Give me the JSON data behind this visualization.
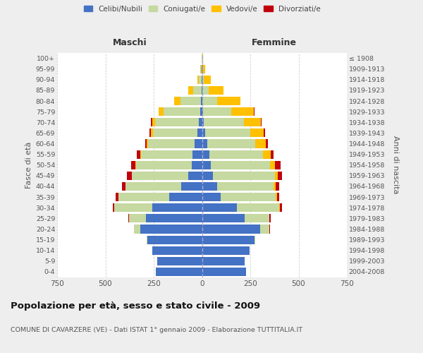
{
  "age_groups": [
    "0-4",
    "5-9",
    "10-14",
    "15-19",
    "20-24",
    "25-29",
    "30-34",
    "35-39",
    "40-44",
    "45-49",
    "50-54",
    "55-59",
    "60-64",
    "65-69",
    "70-74",
    "75-79",
    "80-84",
    "85-89",
    "90-94",
    "95-99",
    "100+"
  ],
  "birth_years": [
    "2004-2008",
    "1999-2003",
    "1994-1998",
    "1989-1993",
    "1984-1988",
    "1979-1983",
    "1974-1978",
    "1969-1973",
    "1964-1968",
    "1959-1963",
    "1954-1958",
    "1949-1953",
    "1944-1948",
    "1939-1943",
    "1934-1938",
    "1929-1933",
    "1924-1928",
    "1919-1923",
    "1914-1918",
    "1909-1913",
    "≤ 1908"
  ],
  "male": {
    "celibi": [
      240,
      232,
      258,
      283,
      318,
      290,
      258,
      170,
      108,
      72,
      52,
      48,
      38,
      22,
      16,
      10,
      5,
      2,
      1,
      1,
      0
    ],
    "coniugati": [
      0,
      0,
      0,
      4,
      34,
      88,
      195,
      262,
      288,
      292,
      288,
      268,
      242,
      232,
      228,
      188,
      108,
      44,
      14,
      4,
      1
    ],
    "vedovi": [
      0,
      0,
      0,
      0,
      0,
      0,
      0,
      0,
      0,
      0,
      5,
      5,
      5,
      10,
      15,
      25,
      30,
      25,
      10,
      5,
      1
    ],
    "divorziati": [
      0,
      0,
      0,
      0,
      2,
      5,
      10,
      15,
      20,
      25,
      20,
      15,
      10,
      8,
      5,
      3,
      1,
      0,
      0,
      0,
      0
    ]
  },
  "female": {
    "nubili": [
      228,
      222,
      248,
      272,
      302,
      222,
      182,
      98,
      78,
      58,
      44,
      38,
      28,
      18,
      8,
      4,
      2,
      1,
      0,
      0,
      0
    ],
    "coniugate": [
      0,
      0,
      0,
      5,
      48,
      128,
      218,
      282,
      292,
      318,
      308,
      278,
      248,
      232,
      208,
      148,
      78,
      34,
      10,
      3,
      1
    ],
    "vedove": [
      0,
      0,
      0,
      0,
      0,
      0,
      5,
      10,
      10,
      15,
      25,
      40,
      55,
      70,
      88,
      118,
      118,
      78,
      34,
      14,
      3
    ],
    "divorziate": [
      0,
      0,
      0,
      0,
      2,
      5,
      10,
      10,
      20,
      25,
      30,
      15,
      10,
      5,
      3,
      2,
      1,
      0,
      0,
      0,
      0
    ]
  },
  "colors": {
    "celibi": "#4472C4",
    "coniugati": "#C5D9A0",
    "vedovi": "#FFC000",
    "divorziati": "#C0000C"
  },
  "xlim": 750,
  "title": "Popolazione per età, sesso e stato civile - 2009",
  "subtitle": "COMUNE DI CAVARZERE (VE) - Dati ISTAT 1° gennaio 2009 - Elaborazione TUTTITALIA.IT",
  "ylabel_left": "Fasce di età",
  "ylabel_right": "Anni di nascita",
  "label_maschi": "Maschi",
  "label_femmine": "Femmine",
  "legend_labels": [
    "Celibi/Nubili",
    "Coniugati/e",
    "Vedovi/e",
    "Divorziati/e"
  ],
  "bg_color": "#eeeeee",
  "plot_bg": "#ffffff"
}
